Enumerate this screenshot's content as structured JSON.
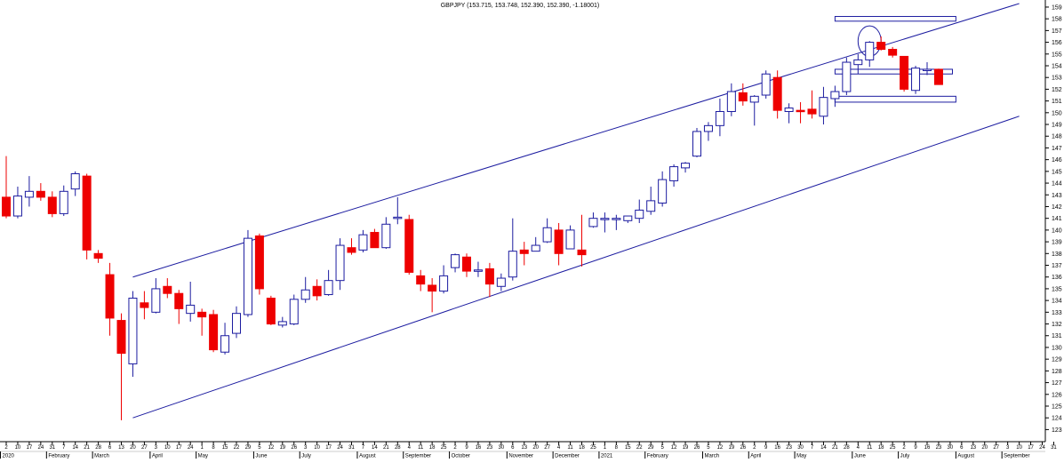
{
  "chart_data": {
    "type": "candlestick",
    "title": "GBPJPY (153.715, 153.748, 152.390, 152.390, -1.18001)",
    "colors": {
      "up": "#ffffff",
      "up_border": "#1c1ca0",
      "down": "#ee0000",
      "line": "#1c1ca0",
      "axis": "#000000",
      "text": "#000000"
    },
    "y_ticks": [
      123,
      124,
      125,
      126,
      127,
      128,
      129,
      130,
      131,
      132,
      133,
      134,
      135,
      136,
      137,
      138,
      139,
      140,
      141,
      142,
      143,
      144,
      145,
      146,
      147,
      148,
      149,
      150,
      151,
      152,
      153,
      154,
      155,
      156,
      157,
      158,
      159
    ],
    "ylim": [
      122.5,
      159.3
    ],
    "x_day_ticks": [
      "2",
      "10",
      "17",
      "24",
      "31",
      "7",
      "14",
      "21",
      "28",
      "6",
      "13",
      "20",
      "27",
      "3",
      "10",
      "17",
      "24",
      "1",
      "8",
      "15",
      "22",
      "29",
      "5",
      "12",
      "19",
      "26",
      "3",
      "10",
      "17",
      "24",
      "31",
      "7",
      "14",
      "21",
      "28",
      "4",
      "11",
      "18",
      "25",
      "2",
      "9",
      "16",
      "23",
      "30",
      "6",
      "13",
      "20",
      "27",
      "4",
      "11",
      "18",
      "25",
      "1",
      "8",
      "15",
      "22",
      "29",
      "5",
      "12",
      "19",
      "26",
      "5",
      "12",
      "19",
      "26",
      "2",
      "9",
      "16",
      "23",
      "30",
      "7",
      "14",
      "21",
      "28",
      "4",
      "11",
      "18",
      "25",
      "2",
      "9",
      "16",
      "23",
      "30",
      "6",
      "13",
      "20",
      "27",
      "3",
      "10",
      "17",
      "24",
      "31",
      "7",
      "14",
      "21",
      "28",
      "4",
      "11",
      "18",
      "25",
      "2",
      "9",
      "16",
      "23",
      "30",
      "Se"
    ],
    "x_month_labels": [
      {
        "label": "2020",
        "index": 0
      },
      {
        "label": "February",
        "index": 4
      },
      {
        "label": "March",
        "index": 8
      },
      {
        "label": "April",
        "index": 13
      },
      {
        "label": "May",
        "index": 17
      },
      {
        "label": "June",
        "index": 22
      },
      {
        "label": "July",
        "index": 26
      },
      {
        "label": "August",
        "index": 31
      },
      {
        "label": "September",
        "index": 35
      },
      {
        "label": "October",
        "index": 39
      },
      {
        "label": "November",
        "index": 44
      },
      {
        "label": "December",
        "index": 48
      },
      {
        "label": "2021",
        "index": 52
      },
      {
        "label": "February",
        "index": 56
      },
      {
        "label": "March",
        "index": 61
      },
      {
        "label": "April",
        "index": 65
      },
      {
        "label": "May",
        "index": 69
      },
      {
        "label": "June",
        "index": 74
      },
      {
        "label": "July",
        "index": 78
      },
      {
        "label": "August",
        "index": 83
      },
      {
        "label": "September",
        "index": 87
      }
    ],
    "candles": [
      {
        "i": 0,
        "o": 142.8,
        "h": 146.3,
        "l": 141.0,
        "c": 141.2
      },
      {
        "i": 1,
        "o": 141.2,
        "h": 143.7,
        "l": 141.0,
        "c": 142.9
      },
      {
        "i": 2,
        "o": 142.8,
        "h": 144.6,
        "l": 142.0,
        "c": 143.3
      },
      {
        "i": 3,
        "o": 143.3,
        "h": 144.0,
        "l": 142.5,
        "c": 142.8
      },
      {
        "i": 4,
        "o": 142.8,
        "h": 143.3,
        "l": 141.1,
        "c": 141.4
      },
      {
        "i": 5,
        "o": 141.4,
        "h": 143.8,
        "l": 141.2,
        "c": 143.3
      },
      {
        "i": 6,
        "o": 143.5,
        "h": 145.0,
        "l": 142.9,
        "c": 144.8
      },
      {
        "i": 7,
        "o": 144.6,
        "h": 144.8,
        "l": 137.5,
        "c": 138.3
      },
      {
        "i": 8,
        "o": 138.0,
        "h": 138.3,
        "l": 137.2,
        "c": 137.6
      },
      {
        "i": 9,
        "o": 136.2,
        "h": 137.2,
        "l": 131.0,
        "c": 132.5
      },
      {
        "i": 10,
        "o": 132.3,
        "h": 132.9,
        "l": 123.8,
        "c": 129.5
      },
      {
        "i": 11,
        "o": 128.6,
        "h": 134.8,
        "l": 127.5,
        "c": 134.2
      },
      {
        "i": 12,
        "o": 133.8,
        "h": 134.8,
        "l": 132.4,
        "c": 133.4
      },
      {
        "i": 13,
        "o": 133.0,
        "h": 135.9,
        "l": 132.9,
        "c": 135.0
      },
      {
        "i": 14,
        "o": 135.2,
        "h": 135.9,
        "l": 134.2,
        "c": 134.6
      },
      {
        "i": 15,
        "o": 134.6,
        "h": 134.9,
        "l": 132.0,
        "c": 133.3
      },
      {
        "i": 16,
        "o": 132.9,
        "h": 135.6,
        "l": 132.2,
        "c": 133.6
      },
      {
        "i": 17,
        "o": 133.0,
        "h": 133.3,
        "l": 131.0,
        "c": 132.6
      },
      {
        "i": 18,
        "o": 132.8,
        "h": 133.2,
        "l": 129.6,
        "c": 129.8
      },
      {
        "i": 19,
        "o": 129.6,
        "h": 132.1,
        "l": 129.4,
        "c": 131.0
      },
      {
        "i": 20,
        "o": 131.2,
        "h": 133.5,
        "l": 130.8,
        "c": 132.9
      },
      {
        "i": 21,
        "o": 132.8,
        "h": 140.0,
        "l": 132.6,
        "c": 139.3
      },
      {
        "i": 22,
        "o": 139.5,
        "h": 139.7,
        "l": 134.5,
        "c": 135.0
      },
      {
        "i": 23,
        "o": 134.2,
        "h": 134.4,
        "l": 131.9,
        "c": 132.0
      },
      {
        "i": 24,
        "o": 131.9,
        "h": 132.6,
        "l": 131.7,
        "c": 132.2
      },
      {
        "i": 25,
        "o": 132.0,
        "h": 134.5,
        "l": 131.9,
        "c": 134.1
      },
      {
        "i": 26,
        "o": 134.1,
        "h": 136.0,
        "l": 133.8,
        "c": 134.9
      },
      {
        "i": 27,
        "o": 135.2,
        "h": 135.8,
        "l": 134.0,
        "c": 134.4
      },
      {
        "i": 28,
        "o": 134.5,
        "h": 136.6,
        "l": 134.4,
        "c": 135.7
      },
      {
        "i": 29,
        "o": 135.7,
        "h": 139.3,
        "l": 134.9,
        "c": 138.7
      },
      {
        "i": 30,
        "o": 138.5,
        "h": 139.3,
        "l": 137.9,
        "c": 138.1
      },
      {
        "i": 31,
        "o": 138.3,
        "h": 140.0,
        "l": 138.1,
        "c": 139.6
      },
      {
        "i": 32,
        "o": 139.8,
        "h": 140.1,
        "l": 138.5,
        "c": 138.5
      },
      {
        "i": 33,
        "o": 138.5,
        "h": 141.1,
        "l": 138.4,
        "c": 140.5
      },
      {
        "i": 34,
        "o": 141.0,
        "h": 142.8,
        "l": 140.5,
        "c": 141.1
      },
      {
        "i": 35,
        "o": 140.9,
        "h": 141.3,
        "l": 136.2,
        "c": 136.4
      },
      {
        "i": 36,
        "o": 136.1,
        "h": 136.6,
        "l": 134.8,
        "c": 135.4
      },
      {
        "i": 37,
        "o": 135.3,
        "h": 135.9,
        "l": 133.0,
        "c": 134.8
      },
      {
        "i": 38,
        "o": 134.8,
        "h": 137.0,
        "l": 134.6,
        "c": 136.1
      },
      {
        "i": 39,
        "o": 136.8,
        "h": 138.0,
        "l": 136.4,
        "c": 137.9
      },
      {
        "i": 40,
        "o": 137.7,
        "h": 138.0,
        "l": 136.0,
        "c": 136.5
      },
      {
        "i": 41,
        "o": 136.6,
        "h": 137.3,
        "l": 136.0,
        "c": 136.6
      },
      {
        "i": 42,
        "o": 136.7,
        "h": 137.2,
        "l": 134.3,
        "c": 135.4
      },
      {
        "i": 43,
        "o": 135.2,
        "h": 136.3,
        "l": 134.8,
        "c": 135.9
      },
      {
        "i": 44,
        "o": 136.0,
        "h": 141.0,
        "l": 135.7,
        "c": 138.2
      },
      {
        "i": 45,
        "o": 138.3,
        "h": 139.0,
        "l": 137.0,
        "c": 138.0
      },
      {
        "i": 46,
        "o": 138.2,
        "h": 139.4,
        "l": 138.2,
        "c": 138.7
      },
      {
        "i": 47,
        "o": 139.0,
        "h": 141.0,
        "l": 138.9,
        "c": 140.2
      },
      {
        "i": 48,
        "o": 140.0,
        "h": 140.6,
        "l": 137.0,
        "c": 138.0
      },
      {
        "i": 49,
        "o": 138.4,
        "h": 140.4,
        "l": 138.4,
        "c": 140.0
      },
      {
        "i": 50,
        "o": 138.3,
        "h": 141.3,
        "l": 136.9,
        "c": 137.9
      },
      {
        "i": 51,
        "o": 140.3,
        "h": 141.5,
        "l": 140.2,
        "c": 141.0
      },
      {
        "i": 52,
        "o": 141.0,
        "h": 141.5,
        "l": 139.8,
        "c": 141.0
      },
      {
        "i": 53,
        "o": 141.0,
        "h": 141.3,
        "l": 140.0,
        "c": 141.0
      },
      {
        "i": 54,
        "o": 140.8,
        "h": 141.2,
        "l": 140.6,
        "c": 141.2
      },
      {
        "i": 55,
        "o": 141.0,
        "h": 142.6,
        "l": 140.6,
        "c": 141.7
      },
      {
        "i": 56,
        "o": 141.6,
        "h": 143.7,
        "l": 141.3,
        "c": 142.5
      },
      {
        "i": 57,
        "o": 142.3,
        "h": 145.0,
        "l": 142.0,
        "c": 144.3
      },
      {
        "i": 58,
        "o": 144.2,
        "h": 145.6,
        "l": 143.7,
        "c": 145.4
      },
      {
        "i": 59,
        "o": 145.3,
        "h": 145.8,
        "l": 144.9,
        "c": 145.7
      },
      {
        "i": 60,
        "o": 146.3,
        "h": 148.7,
        "l": 146.2,
        "c": 148.4
      },
      {
        "i": 61,
        "o": 148.4,
        "h": 149.2,
        "l": 147.6,
        "c": 148.9
      },
      {
        "i": 62,
        "o": 148.9,
        "h": 151.2,
        "l": 148.0,
        "c": 150.1
      },
      {
        "i": 63,
        "o": 150.1,
        "h": 152.5,
        "l": 149.7,
        "c": 151.8
      },
      {
        "i": 64,
        "o": 151.7,
        "h": 152.5,
        "l": 150.6,
        "c": 151.0
      },
      {
        "i": 65,
        "o": 150.9,
        "h": 151.5,
        "l": 148.9,
        "c": 151.4
      },
      {
        "i": 66,
        "o": 151.5,
        "h": 153.6,
        "l": 151.2,
        "c": 153.3
      },
      {
        "i": 67,
        "o": 153.0,
        "h": 153.6,
        "l": 149.5,
        "c": 150.2
      },
      {
        "i": 68,
        "o": 150.1,
        "h": 150.8,
        "l": 149.1,
        "c": 150.4
      },
      {
        "i": 69,
        "o": 150.2,
        "h": 150.9,
        "l": 149.1,
        "c": 150.1
      },
      {
        "i": 70,
        "o": 150.3,
        "h": 151.9,
        "l": 149.5,
        "c": 149.9
      },
      {
        "i": 71,
        "o": 149.7,
        "h": 152.2,
        "l": 149.0,
        "c": 151.3
      },
      {
        "i": 72,
        "o": 151.2,
        "h": 152.3,
        "l": 150.5,
        "c": 151.8
      },
      {
        "i": 73,
        "o": 151.8,
        "h": 154.7,
        "l": 151.5,
        "c": 154.3
      },
      {
        "i": 74,
        "o": 154.1,
        "h": 155.0,
        "l": 153.3,
        "c": 154.5
      },
      {
        "i": 75,
        "o": 154.5,
        "h": 156.1,
        "l": 153.9,
        "c": 156.0
      },
      {
        "i": 76,
        "o": 156.0,
        "h": 156.5,
        "l": 155.3,
        "c": 155.4
      },
      {
        "i": 77,
        "o": 155.4,
        "h": 155.6,
        "l": 154.7,
        "c": 154.9
      },
      {
        "i": 78,
        "o": 154.8,
        "h": 154.8,
        "l": 151.8,
        "c": 152.0
      },
      {
        "i": 79,
        "o": 151.9,
        "h": 154.0,
        "l": 151.6,
        "c": 153.8
      },
      {
        "i": 80,
        "o": 153.7,
        "h": 154.3,
        "l": 153.2,
        "c": 153.7
      },
      {
        "i": 81,
        "o": 153.7,
        "h": 153.75,
        "l": 152.4,
        "c": 152.4
      }
    ],
    "trendlines": [
      {
        "name": "upper-channel",
        "x1": 11.0,
        "y1": 136.0,
        "x2": 88.0,
        "y2": 159.3
      },
      {
        "name": "lower-channel",
        "x1": 11.0,
        "y1": 124.0,
        "x2": 88.0,
        "y2": 149.7
      }
    ],
    "boxes": [
      {
        "name": "box-top",
        "x1": 72.0,
        "x2": 82.5,
        "y1": 157.8,
        "y2": 158.2
      },
      {
        "name": "box-middle",
        "x1": 72.0,
        "x2": 82.2,
        "y1": 153.3,
        "y2": 153.7
      },
      {
        "name": "box-bottom",
        "x1": 72.0,
        "x2": 82.5,
        "y1": 150.9,
        "y2": 151.4
      }
    ],
    "circle": {
      "x": 75.0,
      "y": 156.1,
      "rx": 1.0,
      "ry": 1.3
    }
  }
}
